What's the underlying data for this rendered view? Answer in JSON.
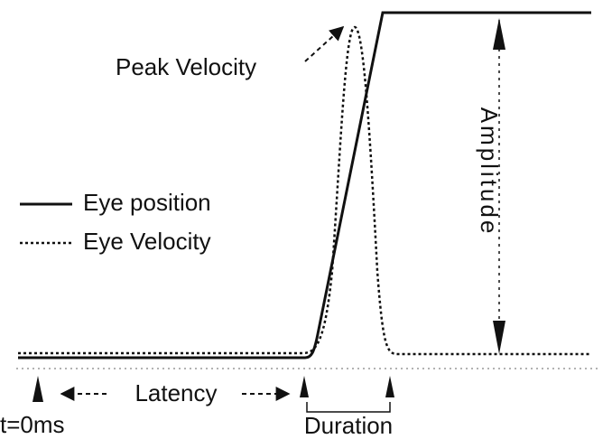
{
  "labels": {
    "peak_velocity": "Peak Velocity",
    "amplitude": "Amplitude",
    "legend": [
      "Eye position",
      "Eye Velocity"
    ],
    "latency": "Latency",
    "start": "t=0ms",
    "duration": "Duration"
  }
}
